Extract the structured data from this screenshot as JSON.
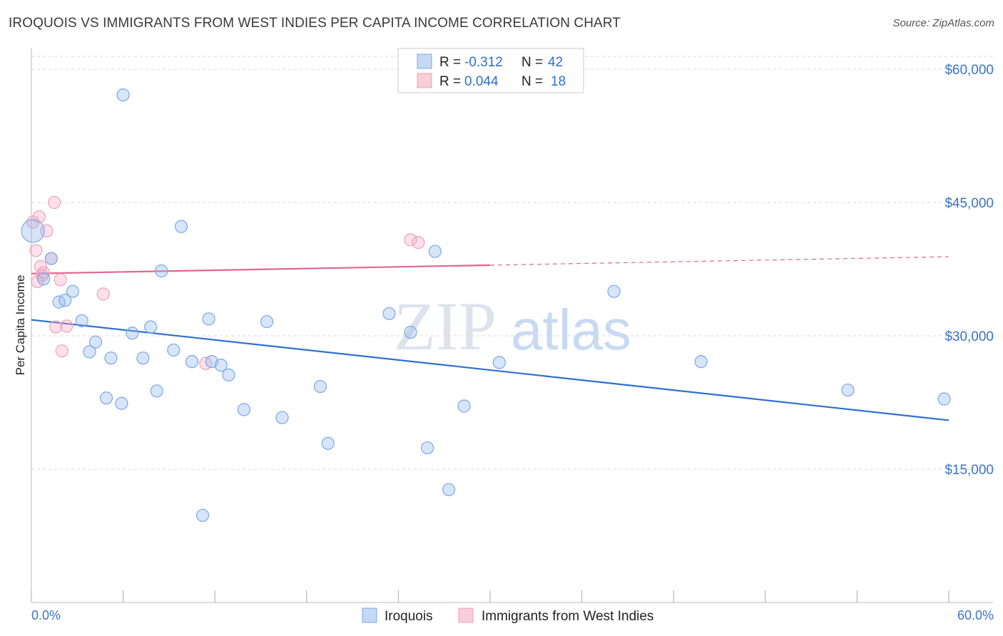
{
  "title": "IROQUOIS VS IMMIGRANTS FROM WEST INDIES PER CAPITA INCOME CORRELATION CHART",
  "source": "Source: ZipAtlas.com",
  "watermark": {
    "zip": "ZIP",
    "atlas": "atlas"
  },
  "legend": {
    "rows": [
      {
        "r_label": "R =",
        "r_value": "-0.312",
        "n_label": "N =",
        "n_value": "42"
      },
      {
        "r_label": "R =",
        "r_value": "0.044",
        "n_label": "N =",
        "n_value": "18"
      }
    ]
  },
  "bottom_legend": [
    "Iroquois",
    "Immigrants from West Indies"
  ],
  "chart_data": {
    "type": "scatter",
    "title": "IROQUOIS VS IMMIGRANTS FROM WEST INDIES PER CAPITA INCOME CORRELATION CHART",
    "xlabel": "",
    "ylabel": "Per Capita Income",
    "xlim": [
      0,
      60
    ],
    "ylim": [
      0,
      63000
    ],
    "x_tick_labels": [
      "0.0%",
      "60.0%"
    ],
    "y_ticks": [
      15000,
      30000,
      45000,
      60000
    ],
    "y_tick_labels": [
      "$15,000",
      "$30,000",
      "$45,000",
      "$60,000"
    ],
    "grid": true,
    "legend_position": "top-center",
    "colors": {
      "iroquois": "#7aa8e6",
      "iroquois_line": "#2f6fd0",
      "west_indies": "#f0a0b8",
      "west_indies_line": "#e0668e"
    },
    "series": [
      {
        "name": "Iroquois",
        "r": -0.312,
        "n": 42,
        "trend": {
          "x": [
            0,
            60
          ],
          "y": [
            31800,
            20500
          ]
        },
        "points": [
          [
            0.1,
            41800
          ],
          [
            0.8,
            36400
          ],
          [
            1.3,
            38700
          ],
          [
            1.8,
            33800
          ],
          [
            2.2,
            34000
          ],
          [
            2.7,
            35000
          ],
          [
            3.3,
            31700
          ],
          [
            3.8,
            28200
          ],
          [
            4.2,
            29300
          ],
          [
            4.9,
            23000
          ],
          [
            5.2,
            27500
          ],
          [
            5.9,
            22400
          ],
          [
            6.0,
            57100
          ],
          [
            6.6,
            30300
          ],
          [
            7.3,
            27500
          ],
          [
            7.8,
            31000
          ],
          [
            8.2,
            23800
          ],
          [
            9.3,
            28400
          ],
          [
            8.5,
            37300
          ],
          [
            9.8,
            42300
          ],
          [
            10.5,
            27100
          ],
          [
            11.2,
            9800
          ],
          [
            11.6,
            31900
          ],
          [
            11.8,
            27100
          ],
          [
            12.4,
            26700
          ],
          [
            12.9,
            25600
          ],
          [
            13.9,
            21700
          ],
          [
            15.4,
            31600
          ],
          [
            16.4,
            20800
          ],
          [
            18.9,
            24300
          ],
          [
            19.4,
            17900
          ],
          [
            23.4,
            32500
          ],
          [
            24.8,
            30400
          ],
          [
            25.9,
            17400
          ],
          [
            26.4,
            39500
          ],
          [
            27.3,
            12700
          ],
          [
            28.3,
            22100
          ],
          [
            30.6,
            27000
          ],
          [
            38.1,
            35000
          ],
          [
            43.8,
            27100
          ],
          [
            53.4,
            23900
          ],
          [
            59.7,
            22900
          ]
        ]
      },
      {
        "name": "Immigrants from West Indies",
        "r": 0.044,
        "n": 18,
        "trend": {
          "x": [
            0,
            60
          ],
          "y": [
            37000,
            38900
          ],
          "solid_until_x": 30
        },
        "points": [
          [
            0.1,
            42800
          ],
          [
            0.3,
            39600
          ],
          [
            0.4,
            36100
          ],
          [
            0.5,
            43400
          ],
          [
            0.6,
            37800
          ],
          [
            0.8,
            37100
          ],
          [
            1.0,
            41800
          ],
          [
            1.3,
            38700
          ],
          [
            1.5,
            45000
          ],
          [
            1.6,
            31000
          ],
          [
            1.9,
            36300
          ],
          [
            2.0,
            28300
          ],
          [
            2.3,
            31100
          ],
          [
            4.7,
            34700
          ],
          [
            11.4,
            26900
          ],
          [
            24.8,
            40800
          ],
          [
            25.3,
            40500
          ],
          [
            0.7,
            36800
          ]
        ]
      }
    ]
  }
}
